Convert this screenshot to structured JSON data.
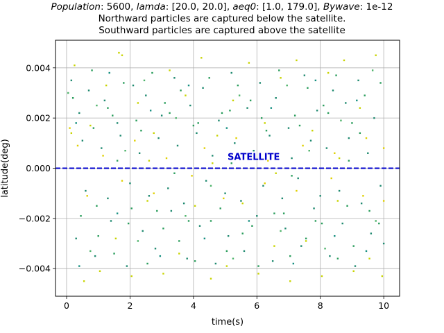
{
  "chart_data": {
    "type": "scatter",
    "title": {
      "line1": {
        "population_label": "Population",
        "population_value": ": 5600, ",
        "lamda_label": "lamda",
        "lamda_value": ": [20.0, 20.0], ",
        "aeq_label": "aeq0",
        "aeq_value": ": [1.0, 179.0], ",
        "bywave_label": "Bywave",
        "bywave_value": ": 1e-12"
      },
      "line2": "Northward particles are captured below the satellite.",
      "line3": "Southward particles are captured above the satellite"
    },
    "xlabel": "time(s)",
    "ylabel": "latitude(deg)",
    "xlim": [
      -0.35,
      10.5
    ],
    "ylim": [
      -0.0051,
      0.0051
    ],
    "xticks": [
      0,
      2,
      4,
      6,
      8,
      10
    ],
    "xtick_labels": [
      "0",
      "2",
      "4",
      "6",
      "8",
      "10"
    ],
    "yticks": [
      -0.004,
      -0.002,
      0.0,
      0.002,
      0.004
    ],
    "ytick_labels": [
      "−0.004",
      "−0.002",
      "0.000",
      "0.002",
      "0.004"
    ],
    "grid": true,
    "satellite": {
      "label": "SATELLITE",
      "y": 0.0,
      "label_x": 5.9,
      "label_y": 0.00033,
      "color": "#0000cc"
    },
    "colors": [
      "#1f8a70",
      "#2a9d5c",
      "#c8d400",
      "#e0d000",
      "#4db36a",
      "#158f80"
    ],
    "series": [
      {
        "color": "#1f8a70",
        "values": [
          [
            0.15,
            0.0035
          ],
          [
            0.4,
            0.0022
          ],
          [
            0.7,
            0.0031
          ],
          [
            1.2,
            0.0027
          ],
          [
            1.6,
            0.0018
          ],
          [
            2.1,
            0.0033
          ],
          [
            2.5,
            0.0029
          ],
          [
            3.0,
            0.0021
          ],
          [
            3.4,
            0.0036
          ],
          [
            3.9,
            0.0025
          ],
          [
            4.3,
            0.0032
          ],
          [
            4.8,
            0.0019
          ],
          [
            5.2,
            0.0038
          ],
          [
            5.7,
            0.0024
          ],
          [
            6.1,
            0.0034
          ],
          [
            6.6,
            0.0028
          ],
          [
            7.0,
            0.0016
          ],
          [
            7.5,
            0.0037
          ],
          [
            7.9,
            0.0023
          ],
          [
            8.4,
            0.0031
          ],
          [
            8.8,
            0.0026
          ],
          [
            9.2,
            0.0035
          ],
          [
            9.7,
            0.002
          ],
          [
            0.3,
            -0.0028
          ],
          [
            0.9,
            -0.0035
          ],
          [
            1.4,
            -0.0021
          ],
          [
            1.9,
            -0.0039
          ],
          [
            2.4,
            -0.0025
          ],
          [
            2.8,
            -0.0032
          ],
          [
            3.3,
            -0.0017
          ],
          [
            3.8,
            -0.0036
          ],
          [
            4.2,
            -0.0023
          ],
          [
            4.7,
            -0.0038
          ],
          [
            5.1,
            -0.0027
          ],
          [
            5.6,
            -0.0033
          ],
          [
            6.0,
            -0.0019
          ],
          [
            6.5,
            -0.0037
          ],
          [
            6.9,
            -0.0024
          ],
          [
            7.4,
            -0.0031
          ],
          [
            7.8,
            -0.0016
          ],
          [
            8.3,
            -0.0035
          ],
          [
            8.7,
            -0.0022
          ],
          [
            9.1,
            -0.0039
          ],
          [
            9.6,
            -0.0026
          ],
          [
            10.0,
            -0.003
          ],
          [
            0.5,
            0.0011
          ],
          [
            1.1,
            0.0008
          ],
          [
            1.7,
            0.0013
          ],
          [
            2.3,
            0.0006
          ],
          [
            2.9,
            0.0012
          ],
          [
            3.5,
            0.0009
          ],
          [
            4.1,
            0.0014
          ],
          [
            4.6,
            0.0005
          ],
          [
            5.3,
            0.001
          ],
          [
            5.9,
            0.0007
          ],
          [
            6.4,
            0.0013
          ],
          [
            7.1,
            0.0004
          ],
          [
            7.7,
            0.0011
          ],
          [
            8.2,
            0.0008
          ],
          [
            8.9,
            0.0012
          ],
          [
            9.5,
            0.0006
          ],
          [
            0.6,
            -0.0009
          ],
          [
            1.3,
            -0.0012
          ],
          [
            2.0,
            -0.0006
          ],
          [
            2.6,
            -0.0011
          ],
          [
            3.2,
            -0.0008
          ],
          [
            3.7,
            -0.0014
          ],
          [
            4.4,
            -0.0005
          ],
          [
            5.0,
            -0.001
          ],
          [
            5.5,
            -0.0013
          ],
          [
            6.2,
            -0.0007
          ],
          [
            6.8,
            -0.0012
          ],
          [
            7.3,
            -0.0004
          ],
          [
            8.0,
            -0.0011
          ],
          [
            8.6,
            -0.0009
          ],
          [
            9.3,
            -0.0014
          ],
          [
            9.9,
            -0.0007
          ]
        ]
      },
      {
        "color": "#2a9d5c",
        "values": [
          [
            0.2,
            0.0028
          ],
          [
            0.8,
            0.0039
          ],
          [
            1.3,
            0.0024
          ],
          [
            1.8,
            0.0034
          ],
          [
            2.2,
            0.0019
          ],
          [
            2.7,
            0.0038
          ],
          [
            3.1,
            0.0026
          ],
          [
            3.6,
            0.0031
          ],
          [
            4.0,
            0.0017
          ],
          [
            4.5,
            0.0036
          ],
          [
            4.9,
            0.0022
          ],
          [
            5.4,
            0.0033
          ],
          [
            5.8,
            0.0027
          ],
          [
            6.3,
            0.0015
          ],
          [
            6.7,
            0.0039
          ],
          [
            7.2,
            0.0021
          ],
          [
            7.6,
            0.0032
          ],
          [
            8.1,
            0.0025
          ],
          [
            8.5,
            0.0037
          ],
          [
            9.0,
            0.0018
          ],
          [
            9.4,
            0.0029
          ],
          [
            9.9,
            0.0034
          ],
          [
            0.45,
            -0.0019
          ],
          [
            1.0,
            -0.0027
          ],
          [
            1.5,
            -0.0034
          ],
          [
            2.05,
            -0.0016
          ],
          [
            2.55,
            -0.0038
          ],
          [
            3.05,
            -0.0024
          ],
          [
            3.55,
            -0.0029
          ],
          [
            4.05,
            -0.0037
          ],
          [
            4.55,
            -0.0021
          ],
          [
            5.05,
            -0.0033
          ],
          [
            5.55,
            -0.0026
          ],
          [
            6.05,
            -0.0039
          ],
          [
            6.55,
            -0.0018
          ],
          [
            7.05,
            -0.0035
          ],
          [
            7.55,
            -0.0028
          ],
          [
            8.05,
            -0.0022
          ],
          [
            8.55,
            -0.0036
          ],
          [
            9.05,
            -0.0031
          ],
          [
            9.55,
            -0.0017
          ],
          [
            0.85,
            0.0016
          ],
          [
            1.45,
            0.0021
          ],
          [
            2.35,
            0.0015
          ],
          [
            3.25,
            0.0022
          ],
          [
            4.15,
            0.0018
          ],
          [
            5.15,
            0.0023
          ],
          [
            6.15,
            0.002
          ],
          [
            7.35,
            0.0017
          ],
          [
            8.25,
            0.0022
          ],
          [
            9.25,
            0.0014
          ],
          [
            0.95,
            -0.0015
          ],
          [
            1.95,
            -0.0022
          ],
          [
            2.85,
            -0.0017
          ],
          [
            3.85,
            -0.0021
          ],
          [
            4.85,
            -0.0016
          ],
          [
            5.85,
            -0.0023
          ],
          [
            6.85,
            -0.0018
          ],
          [
            7.85,
            -0.0021
          ],
          [
            8.85,
            -0.0015
          ],
          [
            9.85,
            -0.0022
          ],
          [
            1.6,
            0.0003
          ],
          [
            3.4,
            -0.0002
          ],
          [
            5.2,
            0.0002
          ],
          [
            7.1,
            -0.0003
          ],
          [
            8.9,
            0.0003
          ]
        ]
      },
      {
        "color": "#c8d400",
        "values": [
          [
            0.25,
            0.0041
          ],
          [
            0.75,
            0.0017
          ],
          [
            1.25,
            0.0033
          ],
          [
            1.75,
            0.0045
          ],
          [
            2.25,
            0.0026
          ],
          [
            2.75,
            0.0014
          ],
          [
            3.25,
            0.0039
          ],
          [
            3.75,
            0.0029
          ],
          [
            4.25,
            0.0044
          ],
          [
            4.75,
            0.0013
          ],
          [
            5.25,
            0.0027
          ],
          [
            5.75,
            0.0042
          ],
          [
            6.25,
            0.0018
          ],
          [
            6.75,
            0.0036
          ],
          [
            7.25,
            0.0043
          ],
          [
            7.75,
            0.0015
          ],
          [
            8.25,
            0.0038
          ],
          [
            8.75,
            0.0043
          ],
          [
            9.25,
            0.0024
          ],
          [
            9.75,
            0.0045
          ],
          [
            0.55,
            -0.0045
          ],
          [
            1.05,
            -0.0041
          ],
          [
            1.55,
            -0.0028
          ],
          [
            2.05,
            -0.0043
          ],
          [
            2.55,
            -0.0013
          ],
          [
            3.05,
            -0.0042
          ],
          [
            3.55,
            -0.0034
          ],
          [
            4.05,
            -0.0015
          ],
          [
            4.55,
            -0.0044
          ],
          [
            5.05,
            -0.0039
          ],
          [
            5.55,
            -0.0014
          ],
          [
            6.05,
            -0.0042
          ],
          [
            6.55,
            -0.0031
          ],
          [
            7.05,
            -0.0045
          ],
          [
            7.55,
            -0.0029
          ],
          [
            8.05,
            -0.0043
          ],
          [
            8.55,
            -0.0013
          ],
          [
            9.05,
            -0.0041
          ],
          [
            9.55,
            -0.0036
          ],
          [
            9.95,
            -0.0043
          ],
          [
            1.65,
            0.0046
          ],
          [
            0.15,
            0.0014
          ],
          [
            2.6,
            0.0003
          ],
          [
            4.6,
            0.0002
          ],
          [
            6.6,
            -0.0002
          ],
          [
            8.6,
            0.0004
          ]
        ]
      },
      {
        "color": "#e0d000",
        "values": [
          [
            0.35,
            0.0009
          ],
          [
            1.15,
            0.0005
          ],
          [
            2.15,
            0.0011
          ],
          [
            3.15,
            0.0004
          ],
          [
            4.35,
            0.0008
          ],
          [
            5.35,
            0.0012
          ],
          [
            6.35,
            0.0003
          ],
          [
            7.45,
            0.0009
          ],
          [
            8.45,
            0.0006
          ],
          [
            9.45,
            0.0012
          ],
          [
            0.65,
            -0.0011
          ],
          [
            1.75,
            -0.0005
          ],
          [
            2.75,
            -0.001
          ],
          [
            3.95,
            -0.0003
          ],
          [
            4.95,
            -0.0012
          ],
          [
            6.25,
            -0.0006
          ],
          [
            7.25,
            -0.0009
          ],
          [
            8.35,
            -0.0004
          ],
          [
            9.35,
            -0.0011
          ],
          [
            0.1,
            0.0016
          ],
          [
            10.0,
            0.0008
          ],
          [
            10.0,
            -0.0013
          ]
        ]
      },
      {
        "color": "#4db36a",
        "values": [
          [
            0.05,
            0.003
          ],
          [
            0.95,
            0.0025
          ],
          [
            2.45,
            0.0035
          ],
          [
            3.45,
            0.002
          ],
          [
            5.45,
            0.0029
          ],
          [
            6.95,
            0.0033
          ],
          [
            8.65,
            0.0019
          ],
          [
            9.65,
            0.0039
          ],
          [
            0.75,
            -0.0033
          ],
          [
            2.25,
            -0.0029
          ],
          [
            3.75,
            -0.0019
          ],
          [
            5.25,
            -0.0036
          ],
          [
            6.75,
            -0.0025
          ],
          [
            8.15,
            -0.0032
          ],
          [
            9.75,
            -0.0021
          ],
          [
            1.85,
            0.0007
          ],
          [
            4.55,
            -0.0007
          ],
          [
            7.65,
            0.0007
          ]
        ]
      },
      {
        "color": "#158f80",
        "values": [
          [
            0.3,
            0.0018
          ],
          [
            1.35,
            0.0038
          ],
          [
            2.65,
            0.0023
          ],
          [
            3.85,
            0.0033
          ],
          [
            5.05,
            0.0016
          ],
          [
            6.45,
            0.0024
          ],
          [
            7.85,
            0.0035
          ],
          [
            9.15,
            0.0027
          ],
          [
            0.4,
            -0.0039
          ],
          [
            1.6,
            -0.0018
          ],
          [
            2.95,
            -0.0035
          ],
          [
            4.35,
            -0.0028
          ],
          [
            5.75,
            -0.0021
          ],
          [
            7.15,
            -0.0038
          ],
          [
            8.45,
            -0.0027
          ],
          [
            9.45,
            -0.0033
          ]
        ]
      }
    ]
  }
}
